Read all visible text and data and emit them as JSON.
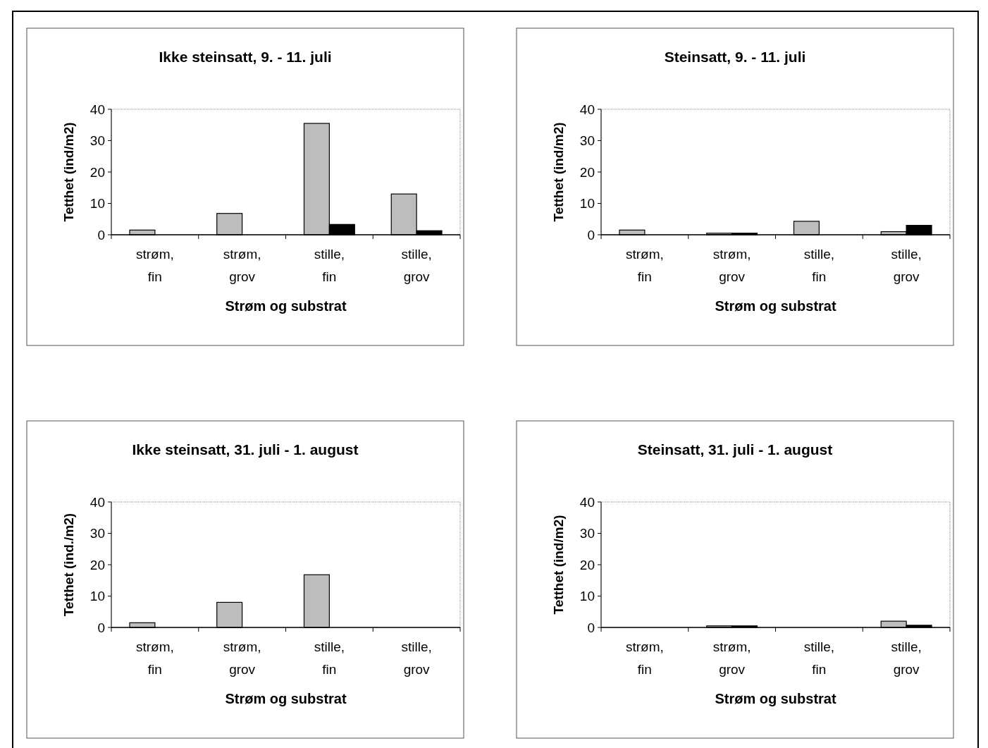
{
  "chart_data": [
    {
      "type": "bar",
      "title": "Ikke steinsatt, 9. - 11. juli",
      "xlabel": "Strøm og substrat",
      "ylabel": "Tetthet (ind/m2)",
      "categories": [
        "strøm,\nfin",
        "strøm,\ngrov",
        "stille,\nfin",
        "stille,\ngrov"
      ],
      "series": [
        {
          "color": "#bdbdbd",
          "values": [
            1.5,
            6.8,
            35.5,
            13
          ]
        },
        {
          "color": "#000000",
          "values": [
            0,
            0,
            3.3,
            1.3
          ]
        }
      ],
      "ylim": [
        0,
        40
      ],
      "yticks": [
        0,
        10,
        20,
        30,
        40
      ],
      "grid": false
    },
    {
      "type": "bar",
      "title": "Steinsatt, 9. - 11. juli",
      "xlabel": "Strøm og substrat",
      "ylabel": "Tetthet (ind/m2)",
      "categories": [
        "strøm,\nfin",
        "strøm,\ngrov",
        "stille,\nfin",
        "stille,\ngrov"
      ],
      "series": [
        {
          "color": "#bdbdbd",
          "values": [
            1.5,
            0.5,
            4.3,
            1
          ]
        },
        {
          "color": "#000000",
          "values": [
            0,
            0.5,
            0,
            3
          ]
        }
      ],
      "ylim": [
        0,
        40
      ],
      "yticks": [
        0,
        10,
        20,
        30,
        40
      ],
      "grid": false
    },
    {
      "type": "bar",
      "title": "Ikke steinsatt, 31. juli - 1. august",
      "xlabel": "Strøm og substrat",
      "ylabel": "Tetthet (ind./m2)",
      "categories": [
        "strøm,\nfin",
        "strøm,\ngrov",
        "stille,\nfin",
        "stille,\ngrov"
      ],
      "series": [
        {
          "color": "#bdbdbd",
          "values": [
            1.5,
            8,
            16.8,
            0
          ]
        },
        {
          "color": "#000000",
          "values": [
            0,
            0,
            0,
            0
          ]
        }
      ],
      "ylim": [
        0,
        40
      ],
      "yticks": [
        0,
        10,
        20,
        30,
        40
      ],
      "grid": false
    },
    {
      "type": "bar",
      "title": "Steinsatt, 31. juli - 1. august",
      "xlabel": "Strøm og substrat",
      "ylabel": "Tetthet (ind/m2)",
      "categories": [
        "strøm,\nfin",
        "strøm,\ngrov",
        "stille,\nfin",
        "stille,\ngrov"
      ],
      "series": [
        {
          "color": "#bdbdbd",
          "values": [
            0,
            0.5,
            0,
            2
          ]
        },
        {
          "color": "#000000",
          "values": [
            0,
            0.5,
            0,
            0.7
          ]
        }
      ],
      "ylim": [
        0,
        40
      ],
      "yticks": [
        0,
        10,
        20,
        30,
        40
      ],
      "grid": false
    }
  ]
}
